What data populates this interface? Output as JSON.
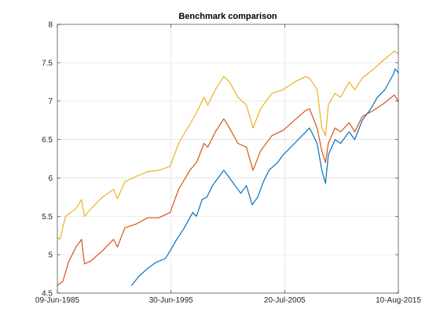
{
  "chart_data": {
    "type": "line",
    "title": "Benchmark comparison",
    "xlabel": "",
    "ylabel": "",
    "x_tick_labels": [
      "09-Jun-1985",
      "30-Jun-1995",
      "20-Jul-2005",
      "10-Aug-2015"
    ],
    "x_ticks": [
      "1985-06-09",
      "1995-06-30",
      "2005-07-20",
      "2015-08-10"
    ],
    "xlim": [
      "1985-06-09",
      "2015-08-10"
    ],
    "y_ticks": [
      4.5,
      5,
      5.5,
      6,
      6.5,
      7,
      7.5,
      8
    ],
    "y_tick_labels": [
      "4.5",
      "5",
      "5.5",
      "6",
      "6.5",
      "7",
      "7.5",
      "8"
    ],
    "ylim": [
      4.5,
      8
    ],
    "grid": true,
    "legend": "none",
    "series": [
      {
        "color": "#0072BD",
        "points": [
          [
            "1992-01-01",
            4.6
          ],
          [
            "1992-09-01",
            4.72
          ],
          [
            "1993-06-01",
            4.82
          ],
          [
            "1994-03-01",
            4.9
          ],
          [
            "1995-01-01",
            4.95
          ],
          [
            "1995-06-01",
            5.05
          ],
          [
            "1996-01-01",
            5.2
          ],
          [
            "1996-09-01",
            5.35
          ],
          [
            "1997-06-01",
            5.55
          ],
          [
            "1997-10-01",
            5.5
          ],
          [
            "1998-04-01",
            5.72
          ],
          [
            "1998-09-01",
            5.75
          ],
          [
            "1999-03-01",
            5.9
          ],
          [
            "1999-12-01",
            6.05
          ],
          [
            "2000-03-01",
            6.1
          ],
          [
            "2000-09-01",
            6.0
          ],
          [
            "2001-03-01",
            5.9
          ],
          [
            "2001-09-01",
            5.8
          ],
          [
            "2002-03-01",
            5.9
          ],
          [
            "2002-09-01",
            5.65
          ],
          [
            "2003-03-01",
            5.75
          ],
          [
            "2003-09-01",
            5.95
          ],
          [
            "2004-03-01",
            6.1
          ],
          [
            "2004-12-01",
            6.2
          ],
          [
            "2005-06-01",
            6.3
          ],
          [
            "2006-06-01",
            6.45
          ],
          [
            "2007-06-01",
            6.6
          ],
          [
            "2007-10-01",
            6.65
          ],
          [
            "2008-06-01",
            6.45
          ],
          [
            "2008-11-01",
            6.1
          ],
          [
            "2009-03-01",
            5.93
          ],
          [
            "2009-06-01",
            6.3
          ],
          [
            "2010-01-01",
            6.5
          ],
          [
            "2010-07-01",
            6.45
          ],
          [
            "2011-04-01",
            6.6
          ],
          [
            "2011-10-01",
            6.5
          ],
          [
            "2012-06-01",
            6.75
          ],
          [
            "2013-03-01",
            6.9
          ],
          [
            "2013-10-01",
            7.05
          ],
          [
            "2014-06-01",
            7.15
          ],
          [
            "2015-03-01",
            7.35
          ],
          [
            "2015-05-01",
            7.42
          ],
          [
            "2015-08-10",
            7.37
          ]
        ]
      },
      {
        "color": "#D95319",
        "points": [
          [
            "1985-06-09",
            4.6
          ],
          [
            "1985-12-01",
            4.65
          ],
          [
            "1986-06-01",
            4.9
          ],
          [
            "1987-02-01",
            5.1
          ],
          [
            "1987-08-01",
            5.2
          ],
          [
            "1987-11-01",
            4.88
          ],
          [
            "1988-06-01",
            4.92
          ],
          [
            "1989-06-01",
            5.05
          ],
          [
            "1990-06-01",
            5.2
          ],
          [
            "1990-10-01",
            5.1
          ],
          [
            "1991-06-01",
            5.35
          ],
          [
            "1992-06-01",
            5.4
          ],
          [
            "1993-06-01",
            5.48
          ],
          [
            "1994-06-01",
            5.48
          ],
          [
            "1995-06-01",
            5.55
          ],
          [
            "1996-03-01",
            5.85
          ],
          [
            "1997-03-01",
            6.1
          ],
          [
            "1997-10-01",
            6.2
          ],
          [
            "1998-06-01",
            6.45
          ],
          [
            "1998-10-01",
            6.4
          ],
          [
            "1999-06-01",
            6.6
          ],
          [
            "2000-03-01",
            6.77
          ],
          [
            "2000-09-01",
            6.65
          ],
          [
            "2001-06-01",
            6.45
          ],
          [
            "2002-03-01",
            6.4
          ],
          [
            "2002-10-01",
            6.1
          ],
          [
            "2003-06-01",
            6.35
          ],
          [
            "2004-06-01",
            6.55
          ],
          [
            "2005-06-01",
            6.62
          ],
          [
            "2006-06-01",
            6.75
          ],
          [
            "2007-06-01",
            6.88
          ],
          [
            "2007-10-01",
            6.9
          ],
          [
            "2008-06-01",
            6.65
          ],
          [
            "2008-11-01",
            6.35
          ],
          [
            "2009-03-01",
            6.2
          ],
          [
            "2009-06-01",
            6.45
          ],
          [
            "2010-01-01",
            6.65
          ],
          [
            "2010-07-01",
            6.6
          ],
          [
            "2011-04-01",
            6.72
          ],
          [
            "2011-10-01",
            6.6
          ],
          [
            "2012-06-01",
            6.8
          ],
          [
            "2013-06-01",
            6.88
          ],
          [
            "2014-06-01",
            6.98
          ],
          [
            "2015-04-01",
            7.08
          ],
          [
            "2015-08-10",
            7.0
          ]
        ]
      },
      {
        "color": "#EDB120",
        "points": [
          [
            "1985-06-09",
            5.22
          ],
          [
            "1985-09-01",
            5.2
          ],
          [
            "1986-03-01",
            5.5
          ],
          [
            "1987-02-01",
            5.6
          ],
          [
            "1987-08-01",
            5.72
          ],
          [
            "1987-11-01",
            5.5
          ],
          [
            "1988-06-01",
            5.6
          ],
          [
            "1989-06-01",
            5.75
          ],
          [
            "1990-06-01",
            5.85
          ],
          [
            "1990-10-01",
            5.73
          ],
          [
            "1991-06-01",
            5.95
          ],
          [
            "1992-06-01",
            6.02
          ],
          [
            "1993-06-01",
            6.08
          ],
          [
            "1994-06-01",
            6.1
          ],
          [
            "1995-06-01",
            6.15
          ],
          [
            "1996-03-01",
            6.45
          ],
          [
            "1997-03-01",
            6.7
          ],
          [
            "1997-10-01",
            6.85
          ],
          [
            "1998-06-01",
            7.05
          ],
          [
            "1998-10-01",
            6.95
          ],
          [
            "1999-06-01",
            7.15
          ],
          [
            "2000-03-01",
            7.32
          ],
          [
            "2000-09-01",
            7.25
          ],
          [
            "2001-06-01",
            7.05
          ],
          [
            "2002-03-01",
            6.95
          ],
          [
            "2002-10-01",
            6.65
          ],
          [
            "2003-06-01",
            6.9
          ],
          [
            "2004-06-01",
            7.1
          ],
          [
            "2005-06-01",
            7.15
          ],
          [
            "2006-06-01",
            7.25
          ],
          [
            "2007-06-01",
            7.32
          ],
          [
            "2007-10-01",
            7.3
          ],
          [
            "2008-06-01",
            7.15
          ],
          [
            "2008-11-01",
            6.65
          ],
          [
            "2009-03-01",
            6.55
          ],
          [
            "2009-06-01",
            6.95
          ],
          [
            "2010-01-01",
            7.1
          ],
          [
            "2010-07-01",
            7.05
          ],
          [
            "2011-04-01",
            7.25
          ],
          [
            "2011-10-01",
            7.15
          ],
          [
            "2012-06-01",
            7.3
          ],
          [
            "2013-06-01",
            7.42
          ],
          [
            "2014-06-01",
            7.55
          ],
          [
            "2015-04-01",
            7.65
          ],
          [
            "2015-08-10",
            7.62
          ]
        ]
      }
    ]
  }
}
